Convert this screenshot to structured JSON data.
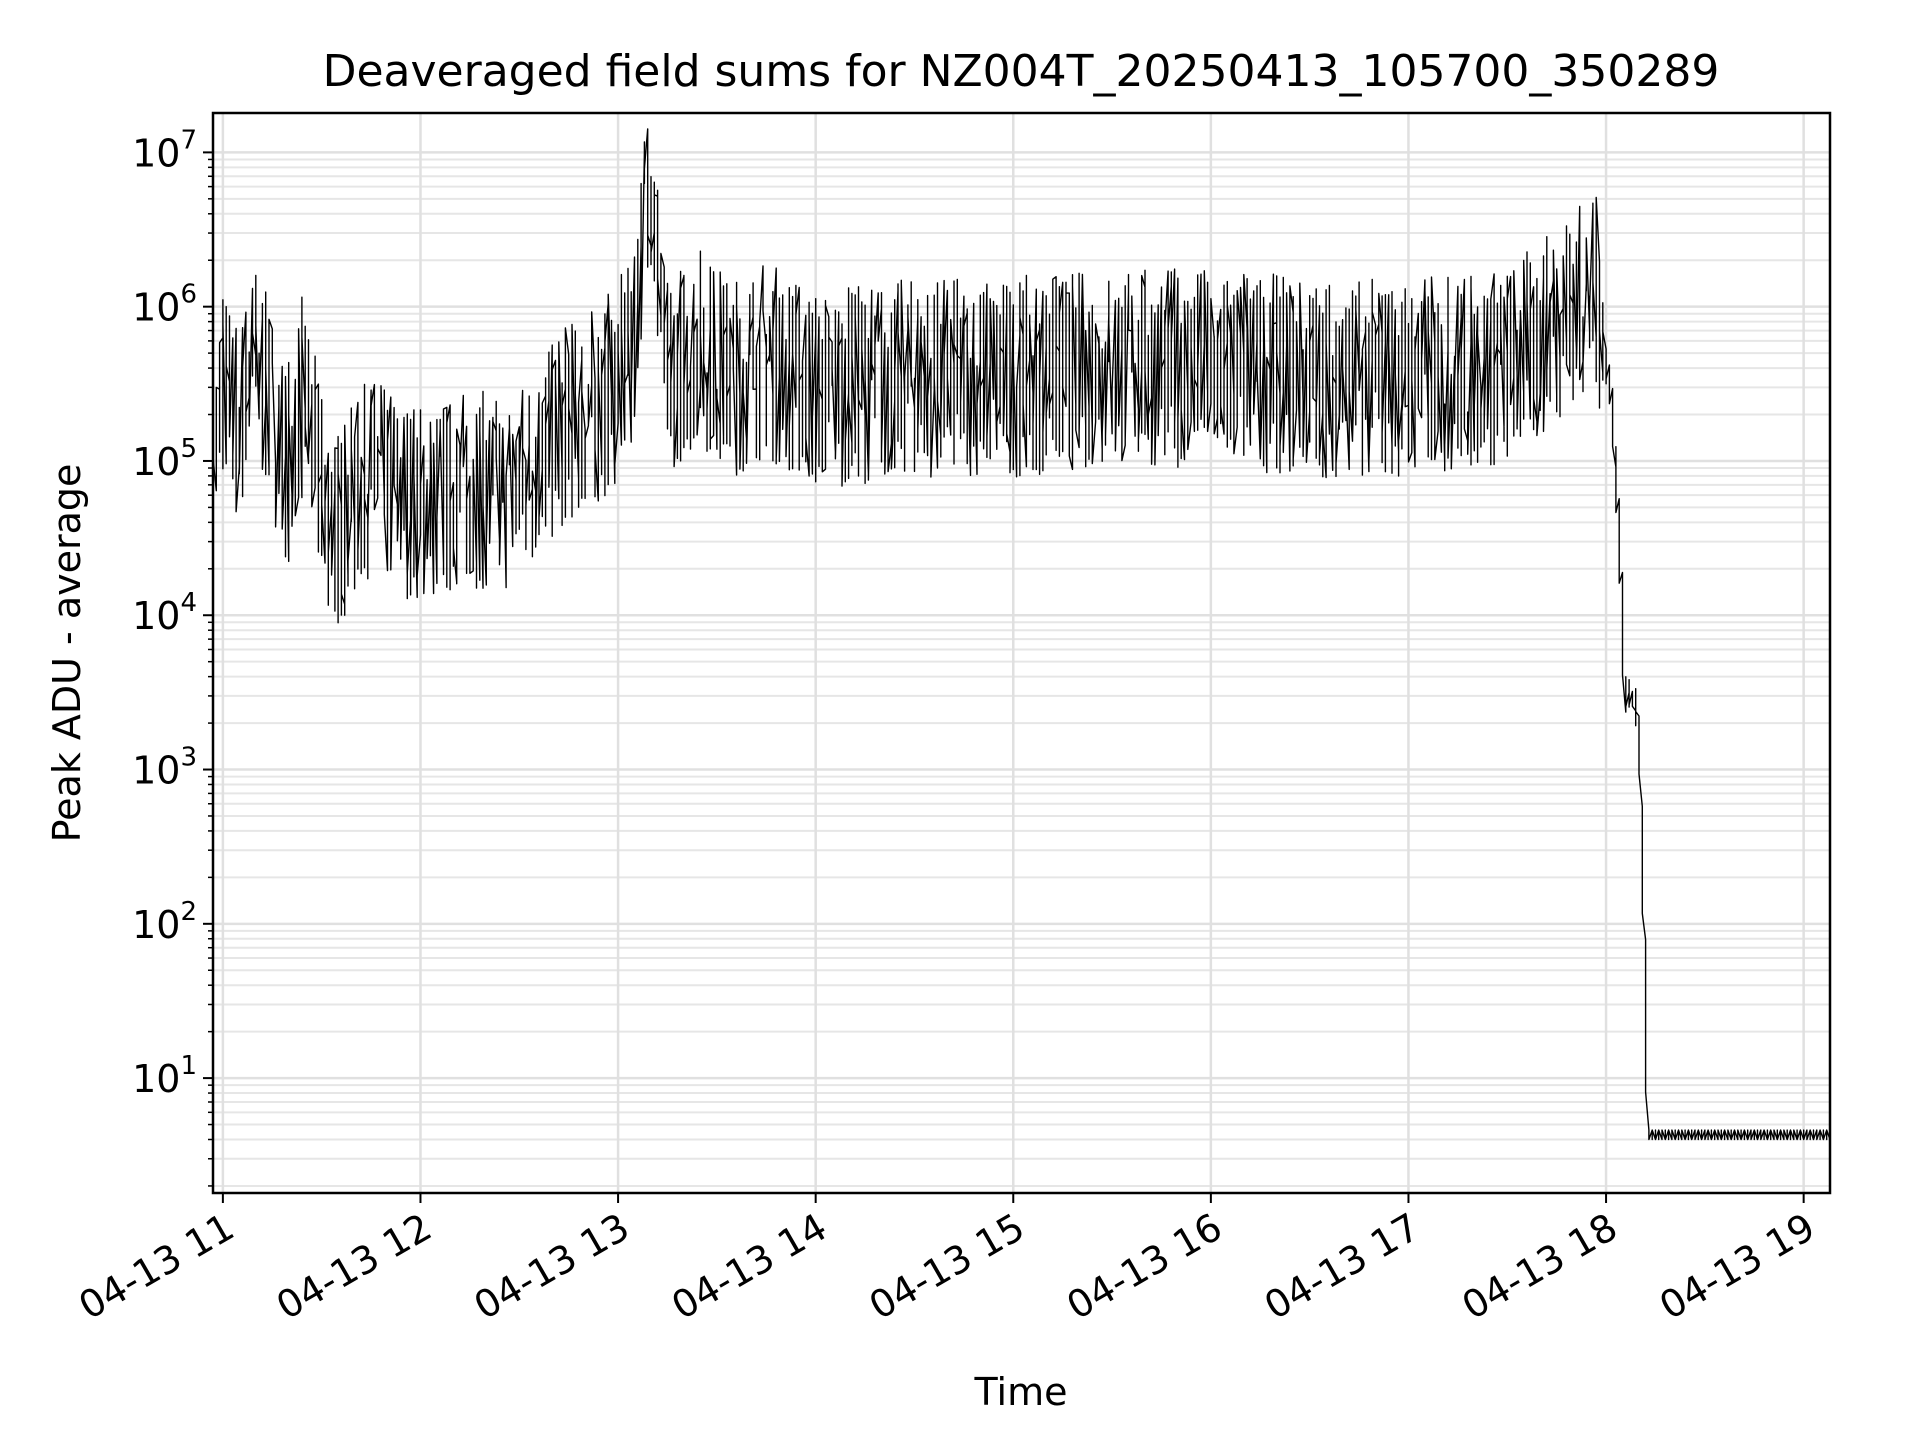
{
  "chart_data": {
    "type": "line",
    "title": "Deaveraged field sums for NZ004T_20250413_105700_350289",
    "xlabel": "Time",
    "ylabel": "Peak ADU - average",
    "yscale": "log",
    "xlim": [
      "2025-04-13T10:57",
      "2025-04-13T19:08"
    ],
    "ylim": [
      1.8,
      18000000
    ],
    "grid": true,
    "line_color": "#000000",
    "x_ticks": [
      {
        "value": "2025-04-13T11:00",
        "label": "04-13 11"
      },
      {
        "value": "2025-04-13T12:00",
        "label": "04-13 12"
      },
      {
        "value": "2025-04-13T13:00",
        "label": "04-13 13"
      },
      {
        "value": "2025-04-13T14:00",
        "label": "04-13 14"
      },
      {
        "value": "2025-04-13T15:00",
        "label": "04-13 15"
      },
      {
        "value": "2025-04-13T16:00",
        "label": "04-13 16"
      },
      {
        "value": "2025-04-13T17:00",
        "label": "04-13 17"
      },
      {
        "value": "2025-04-13T18:00",
        "label": "04-13 18"
      },
      {
        "value": "2025-04-13T19:00",
        "label": "04-13 19"
      }
    ],
    "y_ticks": [
      {
        "value": 10,
        "base": "10",
        "exp": "1"
      },
      {
        "value": 100,
        "base": "10",
        "exp": "2"
      },
      {
        "value": 1000,
        "base": "10",
        "exp": "3"
      },
      {
        "value": 10000,
        "base": "10",
        "exp": "4"
      },
      {
        "value": 100000,
        "base": "10",
        "exp": "5"
      },
      {
        "value": 1000000,
        "base": "10",
        "exp": "6"
      },
      {
        "value": 10000000,
        "base": "10",
        "exp": "7"
      }
    ],
    "series": [
      {
        "points": [
          [
            "2025-04-13T10:57",
            45000
          ],
          [
            "2025-04-13T11:00",
            300000
          ],
          [
            "2025-04-13T11:05",
            150000
          ],
          [
            "2025-04-13T11:10",
            400000
          ],
          [
            "2025-04-13T11:15",
            200000
          ],
          [
            "2025-04-13T11:20",
            80000
          ],
          [
            "2025-04-13T11:25",
            250000
          ],
          [
            "2025-04-13T11:30",
            60000
          ],
          [
            "2025-04-13T11:35",
            30000
          ],
          [
            "2025-04-13T11:45",
            70000
          ],
          [
            "2025-04-13T11:55",
            50000
          ],
          [
            "2025-04-13T12:05",
            45000
          ],
          [
            "2025-04-13T12:15",
            60000
          ],
          [
            "2025-04-13T12:25",
            50000
          ],
          [
            "2025-04-13T12:35",
            80000
          ],
          [
            "2025-04-13T12:45",
            150000
          ],
          [
            "2025-04-13T12:55",
            200000
          ],
          [
            "2025-04-13T13:05",
            400000
          ],
          [
            "2025-04-13T13:10",
            8000000
          ],
          [
            "2025-04-13T13:15",
            300000
          ],
          [
            "2025-04-13T13:25",
            500000
          ],
          [
            "2025-04-13T13:35",
            300000
          ],
          [
            "2025-04-13T13:45",
            400000
          ],
          [
            "2025-04-13T14:00",
            250000
          ],
          [
            "2025-04-13T14:30",
            300000
          ],
          [
            "2025-04-13T15:00",
            300000
          ],
          [
            "2025-04-13T15:30",
            350000
          ],
          [
            "2025-04-13T16:00",
            350000
          ],
          [
            "2025-04-13T16:30",
            300000
          ],
          [
            "2025-04-13T17:00",
            300000
          ],
          [
            "2025-04-13T17:30",
            350000
          ],
          [
            "2025-04-13T17:40",
            500000
          ],
          [
            "2025-04-13T17:50",
            900000
          ],
          [
            "2025-04-13T17:58",
            1000000
          ],
          [
            "2025-04-13T18:00",
            500000
          ],
          [
            "2025-04-13T18:02",
            300000
          ],
          [
            "2025-04-13T18:04",
            50000
          ],
          [
            "2025-04-13T18:05",
            20000
          ],
          [
            "2025-04-13T18:06",
            3000
          ],
          [
            "2025-04-13T18:09",
            3000
          ],
          [
            "2025-04-13T18:10",
            2000
          ],
          [
            "2025-04-13T18:11",
            1000
          ],
          [
            "2025-04-13T18:12",
            100
          ],
          [
            "2025-04-13T18:13",
            4
          ],
          [
            "2025-04-13T19:08",
            4
          ]
        ]
      }
    ]
  }
}
